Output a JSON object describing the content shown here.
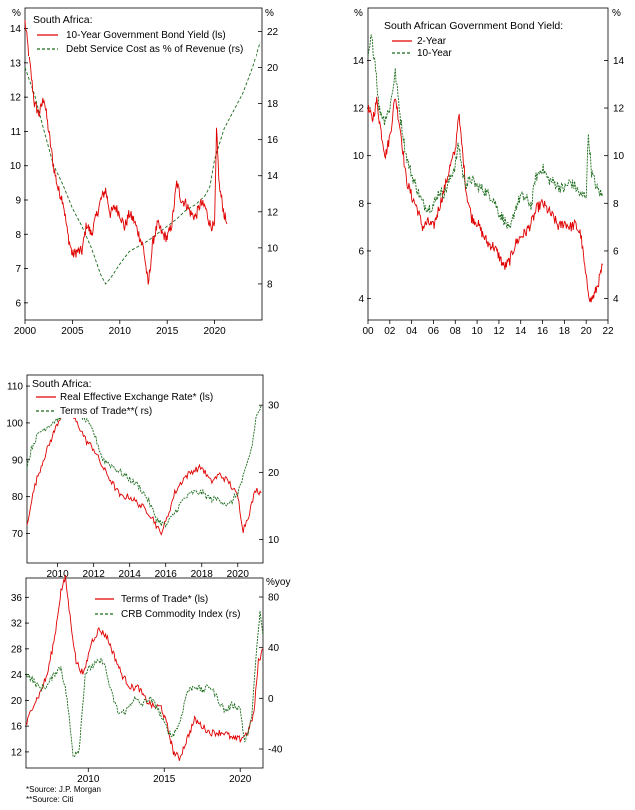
{
  "colors": {
    "red": "#e00000",
    "green": "#1a6b1a",
    "axis": "#000000"
  },
  "chart_data": [
    {
      "type": "line",
      "title": "South Africa:",
      "left_unit": "%",
      "right_unit": "%",
      "left_ticks": [
        "6",
        "7",
        "8",
        "9",
        "10",
        "11",
        "12",
        "13",
        "14"
      ],
      "right_ticks": [
        "8",
        "10",
        "12",
        "14",
        "16",
        "18",
        "20",
        "22"
      ],
      "x_ticks": [
        "2000",
        "2005",
        "2010",
        "2015",
        "2020"
      ],
      "ylim_left": [
        5.5,
        14.6
      ],
      "ylim_right": [
        6,
        23.3
      ],
      "xlim": [
        2000,
        2025
      ],
      "series": [
        {
          "name": "10-Year Government Bond Yield (ls)",
          "axis": "left",
          "style": "solid-red",
          "x": [
            2000,
            2000.5,
            2001,
            2001.5,
            2002,
            2002.5,
            2003,
            2003.5,
            2004,
            2004.5,
            2005,
            2005.5,
            2006,
            2006.5,
            2007,
            2007.5,
            2008,
            2008.5,
            2009,
            2009.5,
            2010,
            2010.5,
            2011,
            2011.5,
            2012,
            2012.5,
            2013,
            2013.5,
            2014,
            2014.5,
            2015,
            2015.5,
            2016,
            2016.5,
            2017,
            2017.5,
            2018,
            2018.5,
            2019,
            2019.5,
            2020,
            2020.2,
            2020.5,
            2021,
            2021.3
          ],
          "y": [
            14.2,
            13.0,
            11.8,
            11.5,
            12.0,
            11.0,
            10.0,
            9.3,
            9.0,
            8.0,
            7.4,
            7.5,
            7.5,
            8.3,
            8.0,
            8.5,
            9.0,
            9.3,
            8.6,
            8.8,
            8.6,
            8.2,
            8.6,
            8.4,
            8.0,
            7.6,
            6.5,
            7.8,
            8.3,
            8.0,
            7.9,
            8.3,
            9.5,
            9.0,
            8.9,
            8.6,
            8.5,
            8.9,
            8.8,
            8.3,
            8.2,
            11.0,
            9.4,
            8.6,
            8.3
          ]
        },
        {
          "name": "Debt Service Cost as % of Revenue (rs)",
          "axis": "right",
          "style": "dashed-green",
          "x": [
            2000,
            2001,
            2002,
            2003,
            2004,
            2005,
            2006,
            2007,
            2008,
            2008.5,
            2009,
            2010,
            2011,
            2012,
            2013,
            2014,
            2015,
            2016,
            2017,
            2018,
            2019,
            2019.5,
            2020,
            2021,
            2022,
            2023,
            2024,
            2024.8
          ],
          "y": [
            20.0,
            18.5,
            16.5,
            14.6,
            13.5,
            12.2,
            11.2,
            10.0,
            8.5,
            8.0,
            8.3,
            9.1,
            9.8,
            10.1,
            10.4,
            10.8,
            11.2,
            11.6,
            12.1,
            12.4,
            12.9,
            13.4,
            14.9,
            16.6,
            17.6,
            18.6,
            20.0,
            21.4
          ]
        }
      ]
    },
    {
      "type": "line",
      "title": "South African Government Bond Yield:",
      "left_unit": "%",
      "right_unit": "%",
      "left_ticks": [
        "4",
        "6",
        "8",
        "10",
        "12",
        "14"
      ],
      "right_ticks": [
        "4",
        "6",
        "8",
        "10",
        "12",
        "14"
      ],
      "x_ticks": [
        "00",
        "02",
        "04",
        "06",
        "08",
        "10",
        "12",
        "14",
        "16",
        "18",
        "20",
        "22"
      ],
      "ylim": [
        3.1,
        16.2
      ],
      "xlim": [
        2000,
        2022
      ],
      "series": [
        {
          "name": "2-Year",
          "style": "solid-red",
          "x": [
            2000,
            2000.4,
            2000.8,
            2001.2,
            2001.6,
            2002,
            2002.5,
            2003,
            2003.5,
            2004,
            2004.5,
            2005,
            2005.5,
            2006,
            2006.5,
            2007,
            2007.5,
            2008,
            2008.3,
            2008.7,
            2009,
            2009.5,
            2010,
            2010.5,
            2011,
            2011.5,
            2012,
            2012.5,
            2013,
            2013.5,
            2014,
            2014.5,
            2015,
            2015.5,
            2016,
            2016.5,
            2017,
            2017.5,
            2018,
            2018.5,
            2019,
            2019.5,
            2020,
            2020.4,
            2020.8,
            2021.2,
            2021.5
          ],
          "y": [
            12.0,
            11.5,
            12.3,
            11.0,
            10.0,
            10.8,
            12.5,
            11.0,
            9.0,
            8.3,
            7.8,
            7.0,
            7.2,
            7.0,
            7.8,
            8.6,
            9.5,
            10.2,
            11.8,
            10.0,
            8.5,
            7.4,
            7.2,
            6.7,
            6.3,
            6.2,
            5.8,
            5.3,
            5.6,
            6.3,
            6.6,
            6.8,
            7.2,
            7.8,
            8.0,
            7.7,
            7.4,
            7.0,
            7.2,
            7.0,
            7.1,
            6.7,
            4.8,
            3.9,
            4.2,
            4.8,
            5.4
          ]
        },
        {
          "name": "10-Year",
          "style": "dashed-green",
          "x": [
            2000,
            2000.3,
            2000.7,
            2001,
            2001.5,
            2002,
            2002.5,
            2003,
            2003.5,
            2004,
            2004.5,
            2005,
            2005.5,
            2006,
            2006.5,
            2007,
            2007.5,
            2008,
            2008.3,
            2008.7,
            2009,
            2009.5,
            2010,
            2010.5,
            2011,
            2011.5,
            2012,
            2012.5,
            2013,
            2013.5,
            2014,
            2014.5,
            2015,
            2015.3,
            2015.7,
            2016,
            2016.5,
            2017,
            2017.5,
            2018,
            2018.5,
            2019,
            2019.5,
            2020,
            2020.2,
            2020.5,
            2021,
            2021.5
          ],
          "y": [
            14.0,
            15.0,
            13.8,
            12.0,
            11.5,
            12.0,
            13.5,
            11.5,
            10.0,
            9.2,
            8.6,
            8.0,
            7.8,
            7.9,
            8.5,
            8.4,
            9.0,
            9.6,
            10.5,
            9.2,
            8.8,
            9.0,
            8.7,
            8.6,
            8.4,
            8.2,
            7.6,
            7.3,
            6.8,
            7.8,
            8.3,
            8.2,
            7.9,
            9.0,
            9.3,
            9.5,
            9.0,
            8.9,
            8.7,
            8.6,
            8.9,
            8.7,
            8.3,
            8.4,
            10.9,
            9.3,
            8.6,
            8.3
          ]
        }
      ]
    },
    {
      "type": "line",
      "title": "South Africa:",
      "left_ticks": [
        "70",
        "80",
        "90",
        "100",
        "110"
      ],
      "right_ticks": [
        "10",
        "20",
        "30"
      ],
      "x_ticks": [
        "2010",
        "2012",
        "2014",
        "2016",
        "2018",
        "2020"
      ],
      "ylim_left": [
        62,
        113
      ],
      "ylim_right": [
        6.5,
        34.5
      ],
      "xlim": [
        2008.3,
        2021.4
      ],
      "series": [
        {
          "name": "Real Effective Exchange Rate* (ls)",
          "axis": "left",
          "style": "solid-red",
          "x": [
            2008.3,
            2008.5,
            2008.8,
            2009.2,
            2009.6,
            2010,
            2010.4,
            2010.8,
            2011.2,
            2011.6,
            2012,
            2012.5,
            2013,
            2013.5,
            2014,
            2014.5,
            2015,
            2015.3,
            2015.7,
            2016,
            2016.5,
            2017,
            2017.5,
            2018,
            2018.5,
            2019,
            2019.5,
            2020,
            2020.3,
            2020.6,
            2021,
            2021.3
          ],
          "y": [
            72,
            78,
            84,
            90,
            95,
            100,
            104,
            102,
            99,
            95,
            93,
            88,
            84,
            80,
            80,
            78,
            76,
            74,
            70,
            73,
            81,
            85,
            87,
            88,
            84,
            86,
            84,
            80,
            71,
            75,
            82,
            81
          ]
        },
        {
          "name": "Terms of Trade**( rs)",
          "axis": "right",
          "style": "dashed-green",
          "x": [
            2008.3,
            2008.6,
            2009,
            2009.5,
            2010,
            2010.5,
            2011,
            2011.5,
            2012,
            2012.5,
            2013,
            2013.5,
            2014,
            2014.5,
            2015,
            2015.5,
            2016,
            2016.5,
            2017,
            2017.5,
            2018,
            2018.5,
            2019,
            2019.5,
            2020,
            2020.4,
            2020.8,
            2021,
            2021.3
          ],
          "y": [
            21,
            24,
            26,
            27,
            28,
            29,
            29,
            28,
            26,
            22,
            21,
            20,
            19,
            18,
            16,
            13,
            12,
            14,
            16,
            17,
            17,
            16,
            16,
            15,
            17,
            20,
            24,
            28,
            30
          ]
        }
      ]
    },
    {
      "type": "line",
      "right_unit": "%yoy",
      "left_ticks": [
        "12",
        "16",
        "20",
        "24",
        "28",
        "32",
        "36"
      ],
      "right_ticks": [
        "-40",
        "0",
        "40",
        "80"
      ],
      "x_ticks": [
        "2010",
        "2015",
        "2020"
      ],
      "ylim_left": [
        9.5,
        39
      ],
      "ylim_right": [
        -55,
        95
      ],
      "xlim": [
        2005.9,
        2021.5
      ],
      "series": [
        {
          "name": "Terms of Trade* (ls)",
          "axis": "left",
          "style": "solid-red",
          "x": [
            2005.9,
            2006.3,
            2006.8,
            2007.3,
            2007.8,
            2008.2,
            2008.5,
            2008.8,
            2009.2,
            2009.7,
            2010.2,
            2010.7,
            2011.2,
            2011.7,
            2012.2,
            2012.8,
            2013.3,
            2013.8,
            2014.3,
            2014.8,
            2015.2,
            2015.6,
            2016,
            2016.5,
            2017,
            2017.5,
            2018,
            2018.5,
            2019,
            2019.5,
            2020,
            2020.5,
            2020.9,
            2021.2,
            2021.5
          ],
          "y": [
            16,
            19,
            21,
            24,
            30,
            37,
            39,
            33,
            26,
            24,
            29,
            31,
            30,
            27,
            24,
            22,
            22,
            20,
            19,
            19,
            16,
            12,
            11,
            14,
            17,
            16,
            15,
            15,
            15,
            14,
            14,
            15,
            18,
            26,
            28
          ]
        },
        {
          "name": "CRB Commodity Index (rs)",
          "axis": "right",
          "style": "dashed-green",
          "x": [
            2005.9,
            2006.3,
            2006.8,
            2007.3,
            2007.8,
            2008.2,
            2008.6,
            2009,
            2009.4,
            2009.8,
            2010.2,
            2010.6,
            2011,
            2011.5,
            2012,
            2012.5,
            2013,
            2013.5,
            2014,
            2014.5,
            2015,
            2015.5,
            2016,
            2016.5,
            2017,
            2017.5,
            2018,
            2018.5,
            2019,
            2019.5,
            2020,
            2020.3,
            2020.7,
            2021,
            2021.3,
            2021.5
          ],
          "y": [
            20,
            15,
            8,
            10,
            20,
            25,
            0,
            -45,
            -40,
            20,
            25,
            28,
            30,
            5,
            -12,
            -10,
            0,
            -5,
            0,
            -6,
            -20,
            -30,
            -20,
            5,
            10,
            6,
            10,
            0,
            -10,
            -5,
            -8,
            -35,
            -20,
            25,
            68,
            50
          ]
        }
      ]
    }
  ],
  "footnotes": [
    "*Source: J.P. Morgan",
    "**Source: Citi"
  ]
}
